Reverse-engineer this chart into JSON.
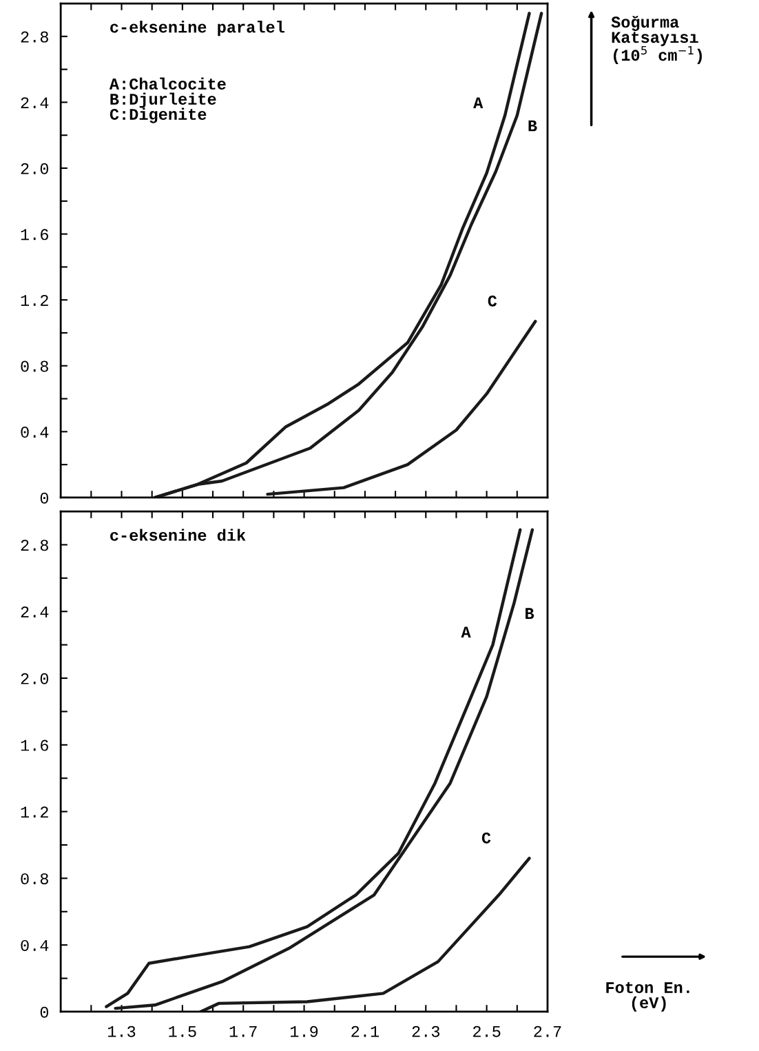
{
  "chart_data": [
    {
      "type": "line",
      "title": "c-eksenine paralel",
      "ylabel": "Soğurma\nKatsayısı\n(10$^{5}$ cm$^{−1}$)",
      "xlim": [
        1.1,
        2.7
      ],
      "ylim": [
        0,
        3.0
      ],
      "xticks": [
        {
          "value": 1.2,
          "label": null
        },
        {
          "value": 1.3,
          "label": null
        },
        {
          "value": 1.4,
          "label": null
        },
        {
          "value": 1.5,
          "label": null
        },
        {
          "value": 1.6,
          "label": null
        },
        {
          "value": 1.7,
          "label": null
        },
        {
          "value": 1.8,
          "label": null
        },
        {
          "value": 1.9,
          "label": null
        },
        {
          "value": 2.0,
          "label": null
        },
        {
          "value": 2.1,
          "label": null
        },
        {
          "value": 2.2,
          "label": null
        },
        {
          "value": 2.3,
          "label": null
        },
        {
          "value": 2.4,
          "label": null
        },
        {
          "value": 2.5,
          "label": null
        },
        {
          "value": 2.6,
          "label": null
        }
      ],
      "yticks": [
        0,
        {
          "value": 0.2,
          "label": null
        },
        0.4,
        {
          "value": 0.6,
          "label": null
        },
        0.8,
        {
          "value": 1.0,
          "label": null
        },
        1.2,
        {
          "value": 1.4,
          "label": null
        },
        1.6,
        {
          "value": 1.8,
          "label": null
        },
        {
          "value": 2.0,
          "label": "2.0"
        },
        {
          "value": 2.2,
          "label": null
        },
        2.4,
        {
          "value": 2.6,
          "label": null
        },
        2.8
      ],
      "tick_labels": "y",
      "grid": false,
      "legend": false,
      "marker": "none",
      "line_style": "solid",
      "series": [
        {
          "name": "A",
          "color": "#1a1a1a",
          "x": [
            1.41,
            1.55,
            1.71,
            1.84,
            1.98,
            2.08,
            2.24,
            2.35,
            2.42,
            2.5,
            2.56,
            2.64
          ],
          "values": [
            0.0,
            0.08,
            0.21,
            0.43,
            0.57,
            0.69,
            0.94,
            1.29,
            1.63,
            1.97,
            2.32,
            2.94
          ]
        },
        {
          "name": "B",
          "color": "#1a1a1a",
          "x": [
            1.41,
            1.55,
            1.63,
            1.92,
            2.08,
            2.19,
            2.29,
            2.38,
            2.45,
            2.53,
            2.6,
            2.68
          ],
          "values": [
            0.0,
            0.08,
            0.1,
            0.3,
            0.53,
            0.76,
            1.04,
            1.35,
            1.66,
            1.98,
            2.32,
            2.94
          ]
        },
        {
          "name": "C",
          "color": "#1a1a1a",
          "x": [
            1.78,
            2.03,
            2.24,
            2.4,
            2.5,
            2.66
          ],
          "values": [
            0.02,
            0.06,
            0.2,
            0.41,
            0.63,
            1.07
          ]
        }
      ],
      "annotations": [
        "A:Chalcocite\nB:Djurleite\nC:Digenite"
      ]
    },
    {
      "type": "line",
      "title": "c-eksenine dik",
      "xlabel": "Foton En. (eV)",
      "xlim": [
        1.1,
        2.7
      ],
      "ylim": [
        0,
        3.0
      ],
      "xticks": [
        {
          "value": 1.2,
          "label": null
        },
        1.3,
        {
          "value": 1.4,
          "label": null
        },
        1.5,
        {
          "value": 1.6,
          "label": null
        },
        1.7,
        {
          "value": 1.8,
          "label": null
        },
        1.9,
        {
          "value": 2.0,
          "label": null
        },
        2.1,
        {
          "value": 2.2,
          "label": null
        },
        2.3,
        {
          "value": 2.4,
          "label": null
        },
        2.5,
        {
          "value": 2.6,
          "label": null
        },
        2.7
      ],
      "yticks": [
        0,
        {
          "value": 0.2,
          "label": null
        },
        0.4,
        {
          "value": 0.6,
          "label": null
        },
        0.8,
        {
          "value": 1.0,
          "label": null
        },
        1.2,
        {
          "value": 1.4,
          "label": null
        },
        1.6,
        {
          "value": 1.8,
          "label": null
        },
        {
          "value": 2.0,
          "label": "2.0"
        },
        {
          "value": 2.2,
          "label": null
        },
        2.4,
        {
          "value": 2.6,
          "label": null
        },
        2.8
      ],
      "grid": false,
      "legend": false,
      "marker": "none",
      "line_style": "solid",
      "series": [
        {
          "name": "A",
          "color": "#1a1a1a",
          "x": [
            1.25,
            1.32,
            1.39,
            1.52,
            1.72,
            1.91,
            2.07,
            2.21,
            2.33,
            2.44,
            2.52,
            2.61
          ],
          "values": [
            0.03,
            0.11,
            0.29,
            0.33,
            0.39,
            0.51,
            0.7,
            0.95,
            1.37,
            1.85,
            2.2,
            2.89
          ]
        },
        {
          "name": "B",
          "color": "#1a1a1a",
          "x": [
            1.28,
            1.41,
            1.63,
            1.85,
            2.13,
            2.38,
            2.5,
            2.59,
            2.65
          ],
          "values": [
            0.02,
            0.04,
            0.18,
            0.38,
            0.7,
            1.37,
            1.89,
            2.45,
            2.89
          ]
        },
        {
          "name": "C",
          "color": "#1a1a1a",
          "x": [
            1.56,
            1.62,
            1.91,
            2.16,
            2.34,
            2.54,
            2.64
          ],
          "values": [
            0.0,
            0.05,
            0.06,
            0.11,
            0.3,
            0.7,
            0.92
          ]
        }
      ]
    }
  ]
}
